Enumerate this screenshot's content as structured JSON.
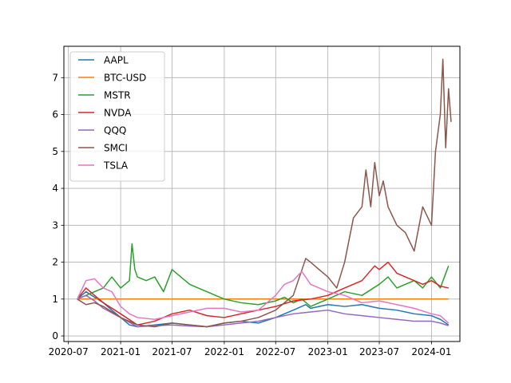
{
  "chart_data": {
    "type": "line",
    "title": "",
    "xlabel": "",
    "ylabel": "",
    "grid": true,
    "legend_position": "top-left",
    "xlim": [
      "2020-06-15",
      "2024-04-10"
    ],
    "ylim": [
      -0.15,
      7.85
    ],
    "x_ticks": [
      "2020-07",
      "2021-01",
      "2021-07",
      "2022-01",
      "2022-07",
      "2023-01",
      "2023-07",
      "2024-01"
    ],
    "y_ticks": [
      0,
      1,
      2,
      3,
      4,
      5,
      6,
      7
    ],
    "series": [
      {
        "name": "AAPL",
        "color": "#1f77b4",
        "points": [
          [
            "2020-08-01",
            1.0
          ],
          [
            "2020-09-01",
            1.2
          ],
          [
            "2020-10-01",
            1.05
          ],
          [
            "2020-11-01",
            0.9
          ],
          [
            "2020-12-01",
            0.7
          ],
          [
            "2021-01-01",
            0.5
          ],
          [
            "2021-02-01",
            0.3
          ],
          [
            "2021-03-01",
            0.25
          ],
          [
            "2021-05-01",
            0.3
          ],
          [
            "2021-07-01",
            0.35
          ],
          [
            "2021-09-01",
            0.3
          ],
          [
            "2021-11-01",
            0.25
          ],
          [
            "2022-01-01",
            0.35
          ],
          [
            "2022-03-01",
            0.4
          ],
          [
            "2022-05-01",
            0.35
          ],
          [
            "2022-07-01",
            0.5
          ],
          [
            "2022-09-01",
            0.7
          ],
          [
            "2022-10-15",
            0.85
          ],
          [
            "2022-11-01",
            0.75
          ],
          [
            "2023-01-01",
            0.85
          ],
          [
            "2023-03-01",
            0.8
          ],
          [
            "2023-05-01",
            0.85
          ],
          [
            "2023-07-01",
            0.75
          ],
          [
            "2023-09-01",
            0.7
          ],
          [
            "2023-11-01",
            0.6
          ],
          [
            "2024-01-01",
            0.55
          ],
          [
            "2024-02-01",
            0.45
          ],
          [
            "2024-03-01",
            0.3
          ]
        ]
      },
      {
        "name": "BTC-USD",
        "color": "#ff7f0e",
        "points": [
          [
            "2020-08-01",
            1.0
          ],
          [
            "2020-08-15",
            1.0
          ],
          [
            "2021-01-01",
            1.0
          ],
          [
            "2022-01-01",
            1.0
          ],
          [
            "2023-01-01",
            1.0
          ],
          [
            "2024-01-01",
            1.0
          ],
          [
            "2024-03-01",
            1.0
          ]
        ]
      },
      {
        "name": "MSTR",
        "color": "#2ca02c",
        "points": [
          [
            "2020-08-01",
            1.0
          ],
          [
            "2020-09-01",
            1.1
          ],
          [
            "2020-10-01",
            1.2
          ],
          [
            "2020-11-01",
            1.3
          ],
          [
            "2020-12-01",
            1.6
          ],
          [
            "2021-01-01",
            1.3
          ],
          [
            "2021-02-01",
            1.5
          ],
          [
            "2021-02-10",
            2.5
          ],
          [
            "2021-02-20",
            1.8
          ],
          [
            "2021-03-01",
            1.6
          ],
          [
            "2021-04-01",
            1.5
          ],
          [
            "2021-05-01",
            1.6
          ],
          [
            "2021-06-01",
            1.2
          ],
          [
            "2021-07-01",
            1.8
          ],
          [
            "2021-08-01",
            1.6
          ],
          [
            "2021-09-01",
            1.4
          ],
          [
            "2021-10-01",
            1.3
          ],
          [
            "2021-11-01",
            1.2
          ],
          [
            "2021-12-01",
            1.1
          ],
          [
            "2022-01-01",
            1.0
          ],
          [
            "2022-03-01",
            0.9
          ],
          [
            "2022-05-01",
            0.85
          ],
          [
            "2022-07-01",
            0.95
          ],
          [
            "2022-08-01",
            1.05
          ],
          [
            "2022-09-01",
            0.9
          ],
          [
            "2022-10-01",
            1.0
          ],
          [
            "2022-11-01",
            0.8
          ],
          [
            "2023-01-01",
            1.0
          ],
          [
            "2023-03-01",
            1.2
          ],
          [
            "2023-05-01",
            1.1
          ],
          [
            "2023-07-01",
            1.4
          ],
          [
            "2023-08-01",
            1.6
          ],
          [
            "2023-09-01",
            1.3
          ],
          [
            "2023-10-01",
            1.4
          ],
          [
            "2023-11-01",
            1.5
          ],
          [
            "2023-12-01",
            1.3
          ],
          [
            "2024-01-01",
            1.6
          ],
          [
            "2024-02-01",
            1.3
          ],
          [
            "2024-03-01",
            1.9
          ]
        ]
      },
      {
        "name": "NVDA",
        "color": "#d62728",
        "points": [
          [
            "2020-08-01",
            1.0
          ],
          [
            "2020-09-01",
            1.3
          ],
          [
            "2020-10-01",
            1.1
          ],
          [
            "2020-11-01",
            0.9
          ],
          [
            "2021-01-01",
            0.6
          ],
          [
            "2021-03-01",
            0.3
          ],
          [
            "2021-05-01",
            0.4
          ],
          [
            "2021-07-01",
            0.6
          ],
          [
            "2021-09-01",
            0.7
          ],
          [
            "2021-11-01",
            0.55
          ],
          [
            "2022-01-01",
            0.5
          ],
          [
            "2022-03-01",
            0.6
          ],
          [
            "2022-05-01",
            0.7
          ],
          [
            "2022-07-01",
            0.8
          ],
          [
            "2022-09-01",
            0.95
          ],
          [
            "2022-11-01",
            1.0
          ],
          [
            "2023-01-01",
            1.1
          ],
          [
            "2023-03-01",
            1.3
          ],
          [
            "2023-05-01",
            1.5
          ],
          [
            "2023-06-15",
            1.9
          ],
          [
            "2023-07-01",
            1.8
          ],
          [
            "2023-08-01",
            2.0
          ],
          [
            "2023-09-01",
            1.7
          ],
          [
            "2023-10-01",
            1.6
          ],
          [
            "2023-11-01",
            1.5
          ],
          [
            "2023-12-01",
            1.4
          ],
          [
            "2024-01-01",
            1.5
          ],
          [
            "2024-02-01",
            1.35
          ],
          [
            "2024-03-01",
            1.3
          ]
        ]
      },
      {
        "name": "QQQ",
        "color": "#9467bd",
        "points": [
          [
            "2020-08-01",
            1.0
          ],
          [
            "2020-09-01",
            1.1
          ],
          [
            "2020-10-01",
            0.95
          ],
          [
            "2020-11-01",
            0.75
          ],
          [
            "2021-01-01",
            0.5
          ],
          [
            "2021-03-01",
            0.25
          ],
          [
            "2021-05-01",
            0.28
          ],
          [
            "2021-07-01",
            0.3
          ],
          [
            "2021-09-01",
            0.27
          ],
          [
            "2021-11-01",
            0.25
          ],
          [
            "2022-01-01",
            0.3
          ],
          [
            "2022-03-01",
            0.35
          ],
          [
            "2022-05-01",
            0.4
          ],
          [
            "2022-07-01",
            0.5
          ],
          [
            "2022-09-01",
            0.6
          ],
          [
            "2022-11-01",
            0.65
          ],
          [
            "2023-01-01",
            0.7
          ],
          [
            "2023-03-01",
            0.6
          ],
          [
            "2023-05-01",
            0.55
          ],
          [
            "2023-07-01",
            0.5
          ],
          [
            "2023-09-01",
            0.45
          ],
          [
            "2023-11-01",
            0.4
          ],
          [
            "2024-01-01",
            0.4
          ],
          [
            "2024-02-01",
            0.35
          ],
          [
            "2024-03-01",
            0.28
          ]
        ]
      },
      {
        "name": "SMCI",
        "color": "#8c564b",
        "points": [
          [
            "2020-08-01",
            1.0
          ],
          [
            "2020-09-01",
            0.85
          ],
          [
            "2020-10-01",
            0.9
          ],
          [
            "2020-11-01",
            0.8
          ],
          [
            "2021-01-01",
            0.5
          ],
          [
            "2021-03-01",
            0.3
          ],
          [
            "2021-05-01",
            0.25
          ],
          [
            "2021-07-01",
            0.35
          ],
          [
            "2021-09-01",
            0.3
          ],
          [
            "2021-11-01",
            0.25
          ],
          [
            "2022-01-01",
            0.35
          ],
          [
            "2022-03-01",
            0.4
          ],
          [
            "2022-05-01",
            0.5
          ],
          [
            "2022-07-01",
            0.7
          ],
          [
            "2022-09-01",
            1.1
          ],
          [
            "2022-10-15",
            2.1
          ],
          [
            "2022-11-01",
            2.0
          ],
          [
            "2022-12-01",
            1.8
          ],
          [
            "2023-01-01",
            1.6
          ],
          [
            "2023-02-01",
            1.3
          ],
          [
            "2023-03-01",
            2.0
          ],
          [
            "2023-04-01",
            3.2
          ],
          [
            "2023-05-01",
            3.5
          ],
          [
            "2023-05-15",
            4.5
          ],
          [
            "2023-06-01",
            3.5
          ],
          [
            "2023-06-15",
            4.7
          ],
          [
            "2023-07-01",
            3.8
          ],
          [
            "2023-07-15",
            4.2
          ],
          [
            "2023-08-01",
            3.5
          ],
          [
            "2023-09-01",
            3.0
          ],
          [
            "2023-10-01",
            2.8
          ],
          [
            "2023-11-01",
            2.3
          ],
          [
            "2023-12-01",
            3.5
          ],
          [
            "2024-01-01",
            3.0
          ],
          [
            "2024-01-15",
            5.0
          ],
          [
            "2024-02-01",
            6.0
          ],
          [
            "2024-02-10",
            7.5
          ],
          [
            "2024-02-20",
            5.1
          ],
          [
            "2024-03-01",
            6.7
          ],
          [
            "2024-03-10",
            5.8
          ]
        ]
      },
      {
        "name": "TSLA",
        "color": "#e377c2",
        "points": [
          [
            "2020-08-01",
            1.0
          ],
          [
            "2020-09-01",
            1.5
          ],
          [
            "2020-10-01",
            1.55
          ],
          [
            "2020-11-01",
            1.3
          ],
          [
            "2020-12-01",
            1.2
          ],
          [
            "2021-01-01",
            0.8
          ],
          [
            "2021-02-01",
            0.6
          ],
          [
            "2021-03-01",
            0.5
          ],
          [
            "2021-05-01",
            0.45
          ],
          [
            "2021-07-01",
            0.55
          ],
          [
            "2021-09-01",
            0.65
          ],
          [
            "2021-11-01",
            0.75
          ],
          [
            "2022-01-01",
            0.75
          ],
          [
            "2022-03-01",
            0.65
          ],
          [
            "2022-05-01",
            0.7
          ],
          [
            "2022-07-01",
            1.1
          ],
          [
            "2022-08-01",
            1.4
          ],
          [
            "2022-09-01",
            1.5
          ],
          [
            "2022-10-01",
            1.75
          ],
          [
            "2022-11-01",
            1.4
          ],
          [
            "2023-01-01",
            1.2
          ],
          [
            "2023-03-01",
            1.1
          ],
          [
            "2023-05-01",
            0.9
          ],
          [
            "2023-07-01",
            0.95
          ],
          [
            "2023-09-01",
            0.85
          ],
          [
            "2023-11-01",
            0.75
          ],
          [
            "2024-01-01",
            0.6
          ],
          [
            "2024-02-01",
            0.55
          ],
          [
            "2024-03-01",
            0.35
          ]
        ]
      }
    ]
  }
}
